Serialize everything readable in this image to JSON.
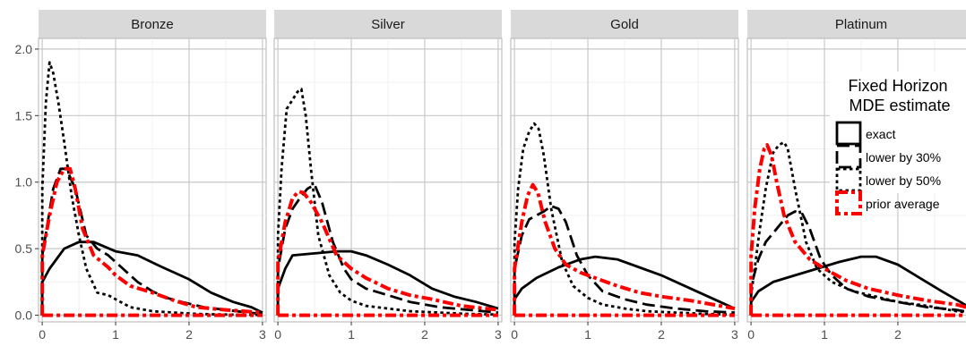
{
  "chart_data": {
    "type": "line",
    "facet_labels": [
      "Bronze",
      "Silver",
      "Gold",
      "Platinum"
    ],
    "xlim": [
      -0.05,
      3.05
    ],
    "ylim": [
      -0.05,
      2.08
    ],
    "x_ticks": [
      0,
      1,
      2,
      3
    ],
    "y_ticks": [
      0.0,
      0.5,
      1.0,
      1.5,
      2.0
    ],
    "y_tick_labels": [
      "0.0",
      "0.5",
      "1.0",
      "1.5",
      "2.0"
    ],
    "grid": true,
    "legend": {
      "position": "top-right",
      "title_line1": "Fixed Horizon",
      "title_line2": "MDE estimate",
      "entries": [
        {
          "label": "exact",
          "style": "solid",
          "color": "#000000"
        },
        {
          "label": "lower by 30%",
          "style": "longdash",
          "color": "#000000"
        },
        {
          "label": "lower by 50%",
          "style": "dotted",
          "color": "#000000"
        },
        {
          "label": "prior average",
          "style": "dashdot",
          "color": "#ff0000"
        }
      ]
    },
    "panels": [
      {
        "name": "Bronze",
        "series": [
          {
            "name": "exact",
            "style": "solid",
            "color": "#000000",
            "x": [
              0,
              0.001,
              0.1,
              0.3,
              0.5,
              0.7,
              1.0,
              1.3,
              1.6,
              2.0,
              2.3,
              2.6,
              2.85,
              3.0
            ],
            "y": [
              0,
              0.25,
              0.35,
              0.5,
              0.55,
              0.55,
              0.48,
              0.45,
              0.37,
              0.27,
              0.17,
              0.1,
              0.06,
              0.02
            ]
          },
          {
            "name": "lower by 30%",
            "style": "longdash",
            "color": "#000000",
            "x": [
              0,
              0.001,
              0.15,
              0.25,
              0.33,
              0.45,
              0.6,
              0.75,
              0.9,
              1.1,
              1.3,
              1.5,
              1.7,
              1.9,
              2.2,
              2.5,
              2.8,
              3.0
            ],
            "y": [
              0,
              0.45,
              0.95,
              1.1,
              1.1,
              0.95,
              0.6,
              0.5,
              0.45,
              0.35,
              0.25,
              0.18,
              0.13,
              0.1,
              0.06,
              0.04,
              0.02,
              0.01
            ]
          },
          {
            "name": "lower by 50%",
            "style": "dotted",
            "color": "#000000",
            "x": [
              0,
              0.001,
              0.05,
              0.1,
              0.15,
              0.22,
              0.3,
              0.4,
              0.5,
              0.6,
              0.75,
              0.9,
              1.0,
              1.2,
              1.5,
              1.8,
              2.1,
              2.5,
              3.0
            ],
            "y": [
              0,
              0.95,
              1.6,
              1.9,
              1.82,
              1.6,
              1.3,
              0.9,
              0.6,
              0.35,
              0.17,
              0.15,
              0.12,
              0.06,
              0.03,
              0.02,
              0.01,
              0.005,
              0.002
            ]
          },
          {
            "name": "prior average",
            "style": "dashdot",
            "color": "#ff0000",
            "x": [
              0,
              0.001,
              0.1,
              0.2,
              0.3,
              0.38,
              0.45,
              0.55,
              0.7,
              0.9,
              1.0,
              1.2,
              1.5,
              1.8,
              2.1,
              2.5,
              3.0
            ],
            "y": [
              0,
              0.45,
              0.75,
              1.0,
              1.1,
              1.1,
              0.95,
              0.65,
              0.45,
              0.36,
              0.3,
              0.22,
              0.17,
              0.11,
              0.06,
              0.04,
              0.02
            ]
          },
          {
            "name": "zero baseline",
            "style": "dashdot",
            "color": "#ff0000",
            "x": [
              0,
              3.0
            ],
            "y": [
              0,
              0
            ]
          }
        ]
      },
      {
        "name": "Silver",
        "series": [
          {
            "name": "exact",
            "style": "solid",
            "color": "#000000",
            "x": [
              0,
              0.001,
              0.1,
              0.2,
              0.4,
              0.6,
              0.8,
              1.0,
              1.2,
              1.5,
              1.8,
              2.1,
              2.4,
              2.7,
              3.0
            ],
            "y": [
              0,
              0.2,
              0.35,
              0.45,
              0.46,
              0.47,
              0.48,
              0.48,
              0.45,
              0.38,
              0.3,
              0.2,
              0.14,
              0.1,
              0.05
            ]
          },
          {
            "name": "lower by 30%",
            "style": "longdash",
            "color": "#000000",
            "x": [
              0,
              0.001,
              0.1,
              0.2,
              0.3,
              0.4,
              0.5,
              0.6,
              0.75,
              0.9,
              1.0,
              1.2,
              1.5,
              1.8,
              2.2,
              2.6,
              3.0
            ],
            "y": [
              0,
              0.35,
              0.65,
              0.8,
              0.88,
              0.95,
              0.98,
              0.85,
              0.55,
              0.35,
              0.27,
              0.2,
              0.15,
              0.1,
              0.06,
              0.04,
              0.02
            ]
          },
          {
            "name": "lower by 50%",
            "style": "dotted",
            "color": "#000000",
            "x": [
              0,
              0.001,
              0.05,
              0.12,
              0.2,
              0.27,
              0.32,
              0.38,
              0.45,
              0.55,
              0.7,
              0.85,
              1.0,
              1.2,
              1.5,
              1.8,
              2.2,
              2.6,
              3.0
            ],
            "y": [
              0,
              0.6,
              1.1,
              1.55,
              1.62,
              1.68,
              1.7,
              1.5,
              1.1,
              0.6,
              0.3,
              0.17,
              0.11,
              0.07,
              0.05,
              0.03,
              0.02,
              0.01,
              0.005
            ]
          },
          {
            "name": "prior average",
            "style": "dashdot",
            "color": "#ff0000",
            "x": [
              0,
              0.001,
              0.1,
              0.2,
              0.28,
              0.35,
              0.45,
              0.6,
              0.8,
              1.0,
              1.2,
              1.5,
              1.8,
              2.1,
              2.5,
              3.0
            ],
            "y": [
              0,
              0.4,
              0.7,
              0.88,
              0.93,
              0.92,
              0.85,
              0.7,
              0.45,
              0.35,
              0.28,
              0.2,
              0.15,
              0.12,
              0.07,
              0.04
            ]
          },
          {
            "name": "zero baseline",
            "style": "dashdot",
            "color": "#ff0000",
            "x": [
              0,
              3.0
            ],
            "y": [
              0,
              0
            ]
          }
        ]
      },
      {
        "name": "Gold",
        "series": [
          {
            "name": "exact",
            "style": "solid",
            "color": "#000000",
            "x": [
              0,
              0.001,
              0.1,
              0.3,
              0.6,
              0.9,
              1.1,
              1.4,
              1.7,
              2.0,
              2.4,
              2.8,
              3.0
            ],
            "y": [
              0,
              0.12,
              0.2,
              0.28,
              0.36,
              0.42,
              0.44,
              0.42,
              0.36,
              0.3,
              0.2,
              0.1,
              0.05
            ]
          },
          {
            "name": "lower by 30%",
            "style": "longdash",
            "color": "#000000",
            "x": [
              0,
              0.001,
              0.1,
              0.2,
              0.3,
              0.4,
              0.5,
              0.6,
              0.7,
              0.85,
              1.0,
              1.2,
              1.5,
              1.8,
              2.2,
              2.6,
              3.0
            ],
            "y": [
              0,
              0.35,
              0.6,
              0.72,
              0.75,
              0.78,
              0.82,
              0.8,
              0.7,
              0.45,
              0.3,
              0.18,
              0.12,
              0.08,
              0.05,
              0.03,
              0.02
            ]
          },
          {
            "name": "lower by 50%",
            "style": "dotted",
            "color": "#000000",
            "x": [
              0,
              0.001,
              0.05,
              0.12,
              0.2,
              0.27,
              0.33,
              0.4,
              0.5,
              0.65,
              0.8,
              1.0,
              1.2,
              1.5,
              1.8,
              2.2,
              2.6,
              3.0
            ],
            "y": [
              0,
              0.55,
              0.95,
              1.25,
              1.38,
              1.44,
              1.4,
              1.2,
              0.8,
              0.4,
              0.22,
              0.13,
              0.08,
              0.05,
              0.03,
              0.02,
              0.01,
              0.005
            ]
          },
          {
            "name": "prior average",
            "style": "dashdot",
            "color": "#ff0000",
            "x": [
              0,
              0.001,
              0.1,
              0.18,
              0.25,
              0.32,
              0.42,
              0.55,
              0.7,
              0.9,
              1.1,
              1.4,
              1.7,
              2.0,
              2.4,
              2.8,
              3.0
            ],
            "y": [
              0,
              0.35,
              0.7,
              0.9,
              0.98,
              0.92,
              0.7,
              0.5,
              0.38,
              0.32,
              0.28,
              0.22,
              0.17,
              0.14,
              0.11,
              0.07,
              0.05
            ]
          },
          {
            "name": "zero baseline",
            "style": "dashdot",
            "color": "#ff0000",
            "x": [
              0,
              3.0
            ],
            "y": [
              0,
              0
            ]
          }
        ]
      },
      {
        "name": "Platinum",
        "series": [
          {
            "name": "exact",
            "style": "solid",
            "color": "#000000",
            "x": [
              0,
              0.001,
              0.1,
              0.3,
              0.6,
              0.9,
              1.2,
              1.5,
              1.7,
              2.0,
              2.3,
              2.6,
              2.85,
              3.0
            ],
            "y": [
              0,
              0.1,
              0.18,
              0.25,
              0.3,
              0.35,
              0.4,
              0.44,
              0.44,
              0.38,
              0.28,
              0.18,
              0.1,
              0.05
            ]
          },
          {
            "name": "lower by 30%",
            "style": "longdash",
            "color": "#000000",
            "x": [
              0,
              0.001,
              0.1,
              0.2,
              0.35,
              0.5,
              0.6,
              0.7,
              0.8,
              0.95,
              1.1,
              1.3,
              1.6,
              2.0,
              2.4,
              2.8,
              3.0
            ],
            "y": [
              0,
              0.22,
              0.42,
              0.55,
              0.65,
              0.75,
              0.78,
              0.76,
              0.65,
              0.42,
              0.3,
              0.2,
              0.14,
              0.1,
              0.06,
              0.04,
              0.02
            ]
          },
          {
            "name": "lower by 50%",
            "style": "dotted",
            "color": "#000000",
            "x": [
              0,
              0.001,
              0.05,
              0.12,
              0.2,
              0.3,
              0.38,
              0.45,
              0.5,
              0.6,
              0.75,
              0.9,
              1.1,
              1.4,
              1.7,
              2.0,
              2.4,
              2.8,
              3.0
            ],
            "y": [
              0,
              0.15,
              0.35,
              0.65,
              0.95,
              1.22,
              1.28,
              1.3,
              1.25,
              0.95,
              0.55,
              0.35,
              0.25,
              0.18,
              0.14,
              0.1,
              0.07,
              0.03,
              0.02
            ]
          },
          {
            "name": "prior average",
            "style": "dashdot",
            "color": "#ff0000",
            "x": [
              0,
              0.001,
              0.05,
              0.12,
              0.18,
              0.22,
              0.28,
              0.35,
              0.45,
              0.6,
              0.8,
              1.0,
              1.3,
              1.6,
              2.0,
              2.4,
              2.8,
              3.0
            ],
            "y": [
              0,
              0.45,
              0.8,
              1.1,
              1.25,
              1.28,
              1.2,
              1.0,
              0.75,
              0.55,
              0.42,
              0.35,
              0.26,
              0.2,
              0.15,
              0.11,
              0.08,
              0.05
            ]
          },
          {
            "name": "zero baseline",
            "style": "dashdot",
            "color": "#ff0000",
            "x": [
              0,
              3.0
            ],
            "y": [
              0,
              0
            ]
          }
        ]
      }
    ]
  }
}
